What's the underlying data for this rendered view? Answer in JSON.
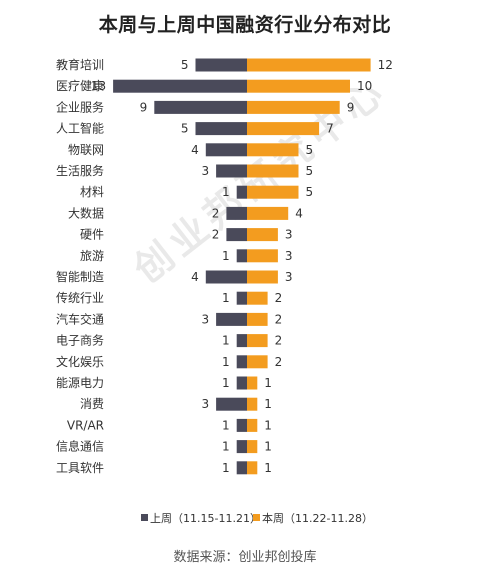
{
  "title": "本周与上周中国融资行业分布对比",
  "source": "数据来源：创业邦创投库",
  "watermark": "创业邦研究中心",
  "colors": {
    "last_week": "#4a4a5a",
    "this_week": "#f39c1f"
  },
  "chart_data": {
    "type": "bar",
    "orientation": "horizontal-diverging",
    "title": "本周与上周中国融资行业分布对比",
    "categories": [
      "教育培训",
      "医疗健康",
      "企业服务",
      "人工智能",
      "物联网",
      "生活服务",
      "材料",
      "大数据",
      "硬件",
      "旅游",
      "智能制造",
      "传统行业",
      "汽车交通",
      "电子商务",
      "文化娱乐",
      "能源电力",
      "消费",
      "VR/AR",
      "信息通信",
      "工具软件"
    ],
    "series": [
      {
        "name": "上周（11.15-11.21）",
        "side": "left",
        "color": "#4a4a5a",
        "values": [
          5,
          13,
          9,
          5,
          4,
          3,
          1,
          2,
          2,
          1,
          4,
          1,
          3,
          1,
          1,
          1,
          3,
          1,
          1,
          1
        ]
      },
      {
        "name": "本周（11.22-11.28）",
        "side": "right",
        "color": "#f39c1f",
        "values": [
          12,
          10,
          9,
          7,
          5,
          5,
          5,
          4,
          3,
          3,
          3,
          2,
          2,
          2,
          2,
          1,
          1,
          1,
          1,
          1
        ]
      }
    ],
    "legend_position": "bottom",
    "grid": false
  }
}
